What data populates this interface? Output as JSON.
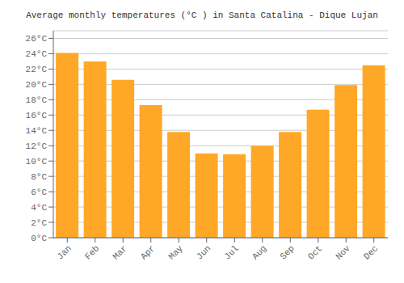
{
  "chart_data": {
    "type": "bar",
    "title": "Average monthly temperatures (°C ) in Santa Catalina - Dique Lujan",
    "categories": [
      "Jan",
      "Feb",
      "Mar",
      "Apr",
      "May",
      "Jun",
      "Jul",
      "Aug",
      "Sep",
      "Oct",
      "Nov",
      "Dec"
    ],
    "values": [
      24.1,
      23.0,
      20.6,
      17.3,
      13.8,
      11.0,
      10.9,
      12.0,
      13.8,
      16.7,
      19.9,
      22.5
    ],
    "color": "#FFA726",
    "ylim": [
      0,
      27
    ],
    "yticks": [
      {
        "value": 0,
        "label": "0°C"
      },
      {
        "value": 2,
        "label": "2°C"
      },
      {
        "value": 4,
        "label": "4°C"
      },
      {
        "value": 6,
        "label": "6°C"
      },
      {
        "value": 8,
        "label": "8°C"
      },
      {
        "value": 10,
        "label": "10°C"
      },
      {
        "value": 12,
        "label": "12°C"
      },
      {
        "value": 14,
        "label": "14°C"
      },
      {
        "value": 16,
        "label": "16°C"
      },
      {
        "value": 18,
        "label": "18°C"
      },
      {
        "value": 20,
        "label": "20°C"
      },
      {
        "value": 22,
        "label": "22°C"
      },
      {
        "value": 24,
        "label": "24°C"
      },
      {
        "value": 26,
        "label": "26°C"
      }
    ],
    "grid": true
  }
}
